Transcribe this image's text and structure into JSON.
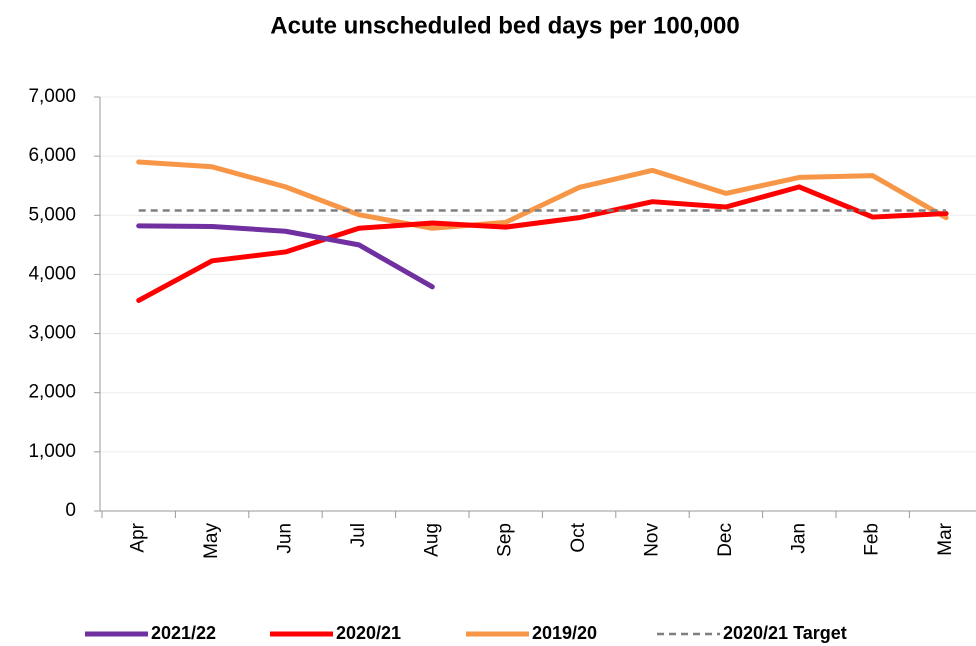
{
  "chart_data": {
    "type": "line",
    "title": "Acute unscheduled bed days per 100,000",
    "categories": [
      "Apr",
      "May",
      "Jun",
      "Jul",
      "Aug",
      "Sep",
      "Oct",
      "Nov",
      "Dec",
      "Jan",
      "Feb",
      "Mar"
    ],
    "series": [
      {
        "name": "2021/22",
        "color": "#7030a0",
        "values": [
          4820,
          4810,
          4730,
          4500,
          3790,
          null,
          null,
          null,
          null,
          null,
          null,
          null
        ]
      },
      {
        "name": "2020/21",
        "color": "#ff0000",
        "values": [
          3560,
          4230,
          4380,
          4780,
          4870,
          4800,
          4960,
          5230,
          5140,
          5480,
          4970,
          5030
        ]
      },
      {
        "name": "2019/20",
        "color": "#f79646",
        "values": [
          5900,
          5820,
          5480,
          5010,
          4780,
          4880,
          5470,
          5760,
          5370,
          5640,
          5670,
          4960
        ]
      },
      {
        "name": "2020/21 Target",
        "color": "#7f7f7f",
        "dashed": true,
        "values": [
          5080,
          5080,
          5080,
          5080,
          5080,
          5080,
          5080,
          5080,
          5080,
          5080,
          5080,
          5080
        ]
      }
    ],
    "ylim": [
      0,
      7000
    ],
    "yticks": [
      0,
      {
        "value": 1000,
        "label": "1,000"
      },
      {
        "value": 2000,
        "label": "2,000"
      },
      {
        "value": 3000,
        "label": "3,000"
      },
      {
        "value": 4000,
        "label": "4,000"
      },
      {
        "value": 5000,
        "label": "5,000"
      },
      {
        "value": 6000,
        "label": "6,000"
      },
      {
        "value": 7000,
        "label": "7,000"
      }
    ],
    "grid": true,
    "legend": "bottom"
  }
}
